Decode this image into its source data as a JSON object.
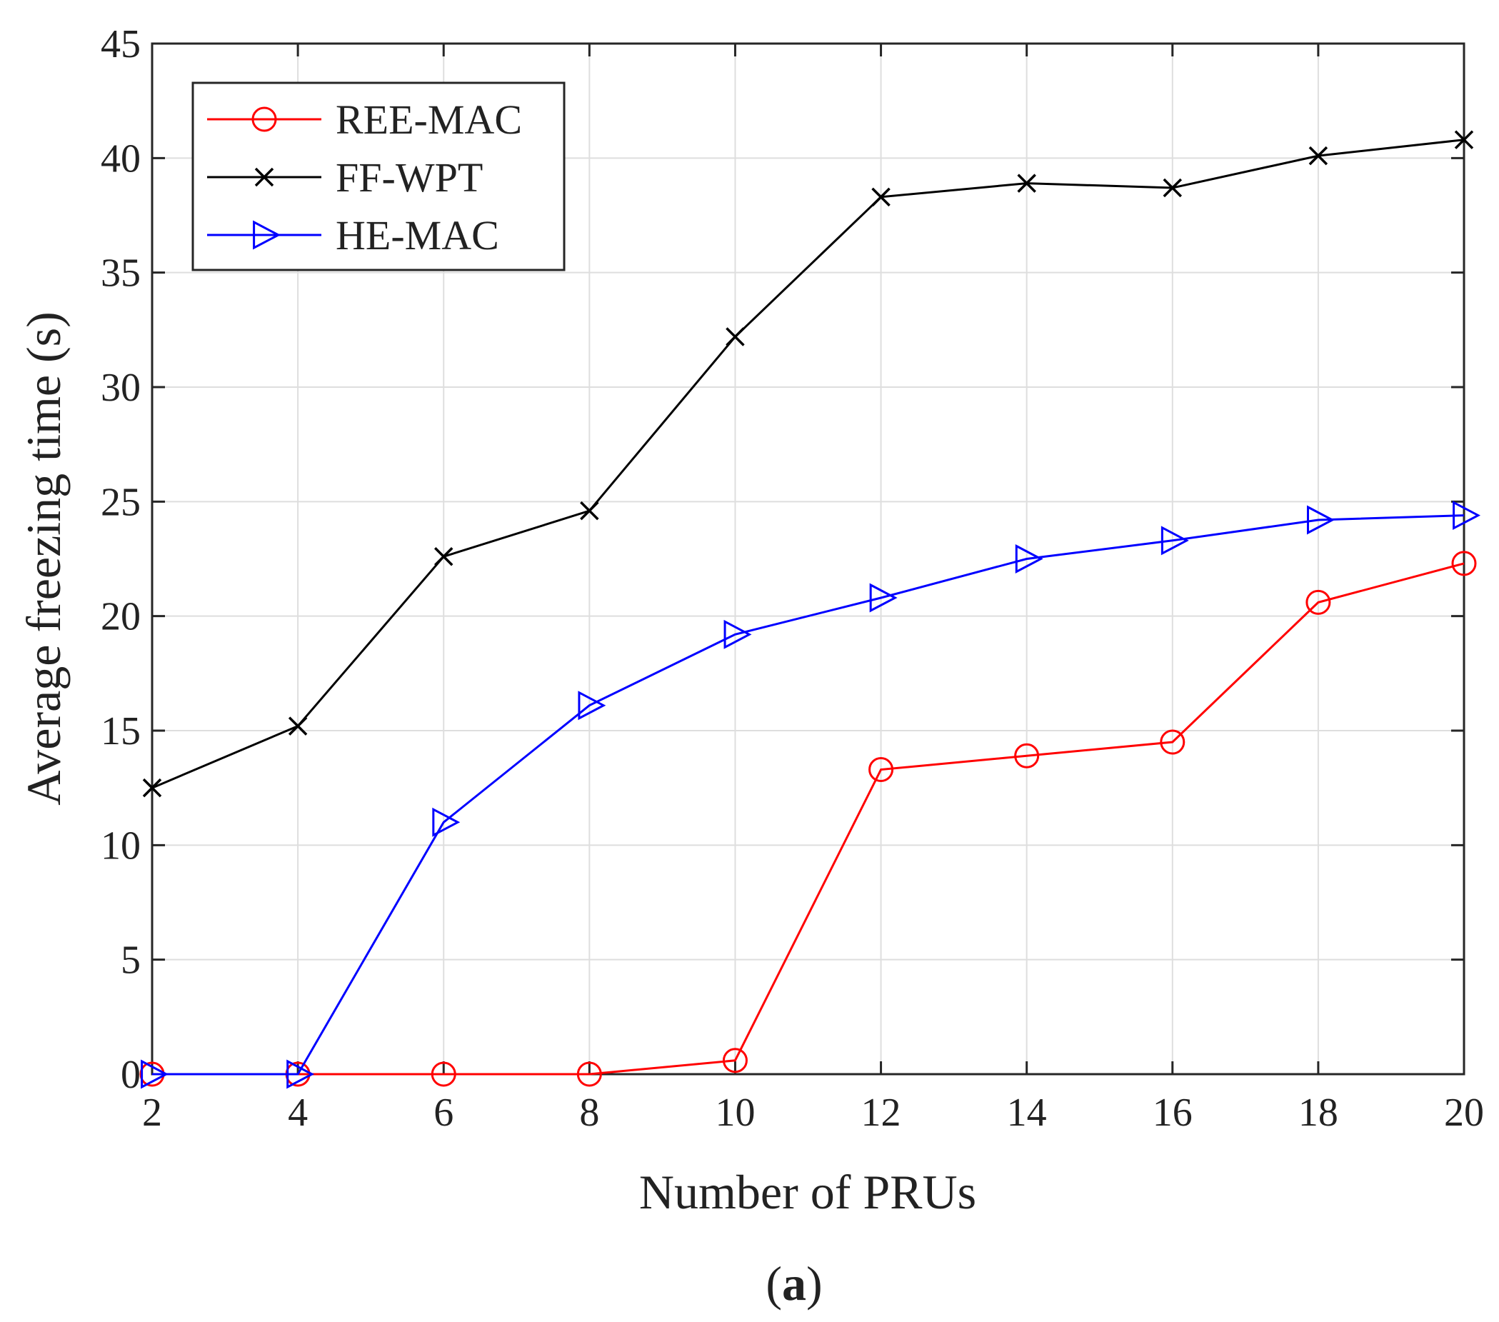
{
  "chart_data": {
    "type": "line",
    "title": "",
    "xlabel": "Number of PRUs",
    "ylabel": "Average freezing time (s)",
    "x": [
      2,
      4,
      6,
      8,
      10,
      12,
      14,
      16,
      18,
      20
    ],
    "xlim": [
      2,
      20
    ],
    "ylim": [
      0,
      45
    ],
    "xticks": [
      2,
      4,
      6,
      8,
      10,
      12,
      14,
      16,
      18,
      20
    ],
    "yticks": [
      0,
      5,
      10,
      15,
      20,
      25,
      30,
      35,
      40,
      45
    ],
    "grid": true,
    "legend_position": "top-left",
    "series": [
      {
        "name": "REE-MAC",
        "color": "#ff0000",
        "marker": "circle",
        "values": [
          0,
          0,
          0,
          0,
          0.6,
          13.3,
          13.9,
          14.5,
          20.6,
          22.3
        ]
      },
      {
        "name": "FF-WPT",
        "color": "#000000",
        "marker": "x",
        "values": [
          12.5,
          15.2,
          22.6,
          24.6,
          32.2,
          38.3,
          38.9,
          38.7,
          40.1,
          40.8
        ]
      },
      {
        "name": "HE-MAC",
        "color": "#0000ff",
        "marker": "triangle-right",
        "values": [
          0,
          0,
          11.0,
          16.1,
          19.2,
          20.8,
          22.5,
          23.3,
          24.2,
          24.4
        ]
      }
    ]
  },
  "caption": {
    "open": "(",
    "letter": "a",
    "close": ")"
  }
}
